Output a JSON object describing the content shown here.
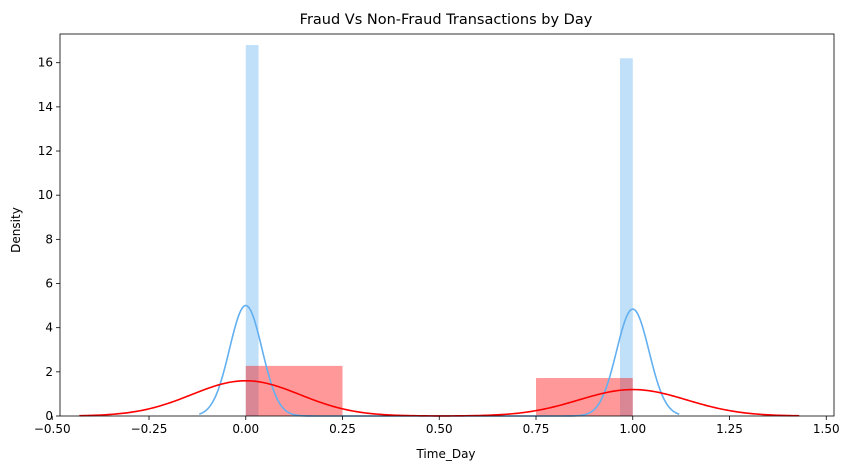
{
  "chart_data": {
    "type": "bar",
    "title": "Fraud Vs Non-Fraud Transactions by Day",
    "xlabel": "Time_Day",
    "ylabel": "Density",
    "xlim": [
      -0.48,
      1.52
    ],
    "ylim": [
      0,
      17.3
    ],
    "xticks": [
      -0.5,
      -0.25,
      0.0,
      0.25,
      0.5,
      0.75,
      1.0,
      1.25,
      1.5
    ],
    "xtick_labels": [
      "−0.50",
      "−0.25",
      "0.00",
      "0.25",
      "0.50",
      "0.75",
      "1.00",
      "1.25",
      "1.50"
    ],
    "yticks": [
      0,
      2,
      4,
      6,
      8,
      10,
      12,
      14,
      16
    ],
    "ytick_labels": [
      "0",
      "2",
      "4",
      "6",
      "8",
      "10",
      "12",
      "14",
      "16"
    ],
    "grid": false,
    "legend": false,
    "series": [
      {
        "kind": "histogram",
        "color": "#62b0f0",
        "opacity": 0.4,
        "bins": [
          {
            "x0": 0.0,
            "x1": 0.033,
            "density": 16.8
          },
          {
            "x0": 0.967,
            "x1": 1.0,
            "density": 16.2
          }
        ]
      },
      {
        "kind": "histogram",
        "color": "#ff0000",
        "opacity": 0.4,
        "bins": [
          {
            "x0": 0.0,
            "x1": 0.25,
            "density": 2.27
          },
          {
            "x0": 0.75,
            "x1": 1.0,
            "density": 1.72
          }
        ]
      },
      {
        "kind": "kde",
        "color": "#62b0f0",
        "x_range": [
          -0.12,
          1.12
        ],
        "components": [
          {
            "mu": 0.0,
            "sigma": 0.042,
            "weight": 0.527
          },
          {
            "mu": 1.0,
            "sigma": 0.042,
            "weight": 0.51
          }
        ]
      },
      {
        "kind": "kde",
        "color": "#ff0000",
        "x_range": [
          -0.43,
          1.43
        ],
        "components": [
          {
            "mu": 0.0,
            "sigma": 0.14,
            "weight": 0.56
          },
          {
            "mu": 1.0,
            "sigma": 0.14,
            "weight": 0.42
          }
        ]
      }
    ]
  }
}
